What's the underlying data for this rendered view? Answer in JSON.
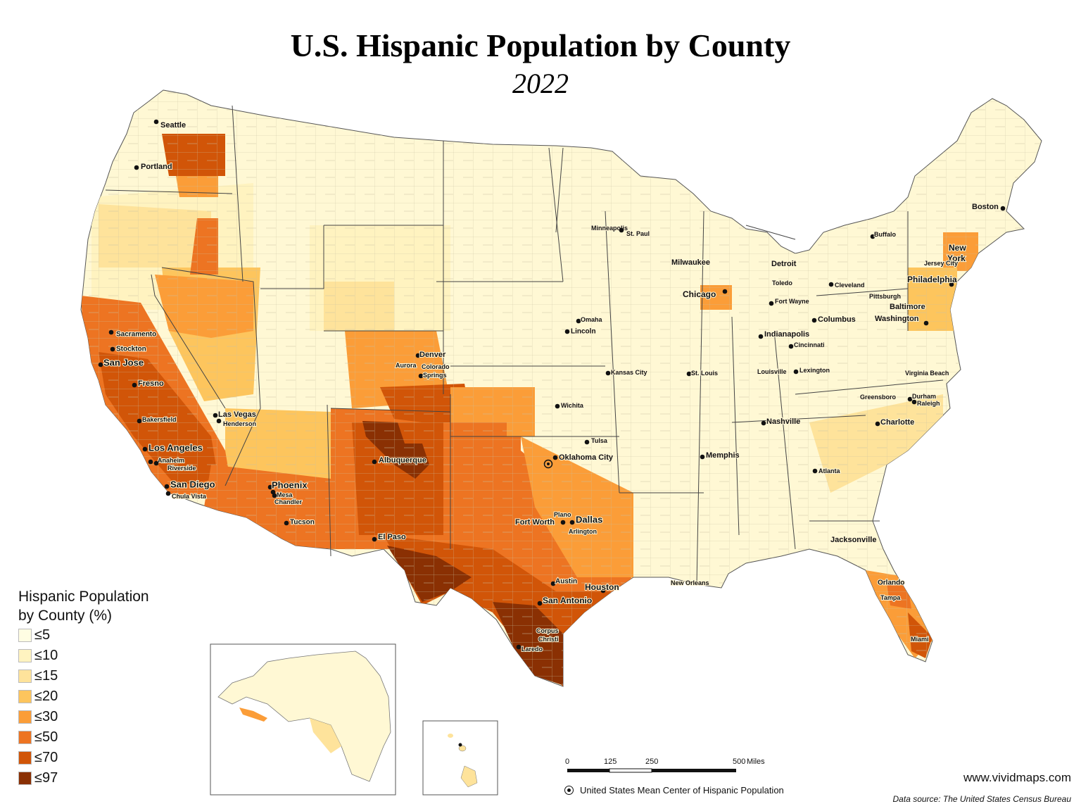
{
  "title": "U.S. Hispanic Population by County",
  "subtitle": "2022",
  "legend": {
    "title_line1": "Hispanic Population",
    "title_line2": "by County (%)",
    "items": [
      {
        "label": "≤5",
        "color": "#fffde3"
      },
      {
        "label": "≤10",
        "color": "#fff3c0"
      },
      {
        "label": "≤15",
        "color": "#fee39b"
      },
      {
        "label": "≤20",
        "color": "#fdc55d"
      },
      {
        "label": "≤30",
        "color": "#fb9d38"
      },
      {
        "label": "≤50",
        "color": "#ed7422"
      },
      {
        "label": "≤70",
        "color": "#d15508"
      },
      {
        "label": "≤97",
        "color": "#8a3003"
      }
    ]
  },
  "cities": [
    {
      "name": "Seattle"
    },
    {
      "name": "Portland"
    },
    {
      "name": "Sacramento"
    },
    {
      "name": "Stockton"
    },
    {
      "name": "San Jose"
    },
    {
      "name": "Fresno"
    },
    {
      "name": "Bakersfield"
    },
    {
      "name": "Los Angeles"
    },
    {
      "name": "Anaheim"
    },
    {
      "name": "Riverside"
    },
    {
      "name": "San Diego"
    },
    {
      "name": "Chula Vista"
    },
    {
      "name": "Las Vegas"
    },
    {
      "name": "Henderson"
    },
    {
      "name": "Phoenix"
    },
    {
      "name": "Mesa"
    },
    {
      "name": "Chandler"
    },
    {
      "name": "Tucson"
    },
    {
      "name": "Denver"
    },
    {
      "name": "Aurora"
    },
    {
      "name": "Colorado"
    },
    {
      "name": "Springs"
    },
    {
      "name": "Albuquerque"
    },
    {
      "name": "El Paso"
    },
    {
      "name": "Minneapolis"
    },
    {
      "name": "St. Paul"
    },
    {
      "name": "Omaha"
    },
    {
      "name": "Lincoln"
    },
    {
      "name": "Kansas City"
    },
    {
      "name": "Wichita"
    },
    {
      "name": "Tulsa"
    },
    {
      "name": "Oklahoma City"
    },
    {
      "name": "Plano"
    },
    {
      "name": "Dallas"
    },
    {
      "name": "Fort Worth"
    },
    {
      "name": "Arlington"
    },
    {
      "name": "Austin"
    },
    {
      "name": "Houston"
    },
    {
      "name": "San Antonio"
    },
    {
      "name": "Corpus"
    },
    {
      "name": "Christi"
    },
    {
      "name": "Laredo"
    },
    {
      "name": "Milwaukee"
    },
    {
      "name": "Chicago"
    },
    {
      "name": "Detroit"
    },
    {
      "name": "Toledo"
    },
    {
      "name": "Cleveland"
    },
    {
      "name": "Fort Wayne"
    },
    {
      "name": "Columbus"
    },
    {
      "name": "Indianapolis"
    },
    {
      "name": "Cincinnati"
    },
    {
      "name": "St. Louis"
    },
    {
      "name": "Louisville"
    },
    {
      "name": "Lexington"
    },
    {
      "name": "Nashville"
    },
    {
      "name": "Memphis"
    },
    {
      "name": "Atlanta"
    },
    {
      "name": "New Orleans"
    },
    {
      "name": "Jacksonville"
    },
    {
      "name": "Orlando"
    },
    {
      "name": "Tampa"
    },
    {
      "name": "Miami"
    },
    {
      "name": "Charlotte"
    },
    {
      "name": "Greensboro"
    },
    {
      "name": "Durham"
    },
    {
      "name": "Raleigh"
    },
    {
      "name": "Virginia Beach"
    },
    {
      "name": "Washington"
    },
    {
      "name": "Baltimore"
    },
    {
      "name": "Pittsburgh"
    },
    {
      "name": "Philadelphia"
    },
    {
      "name": "New"
    },
    {
      "name": "York"
    },
    {
      "name": "Jersey City"
    },
    {
      "name": "Buffalo"
    },
    {
      "name": "Boston"
    }
  ],
  "scale_bar": {
    "ticks": [
      "0",
      "125",
      "250",
      "500"
    ],
    "unit": "Miles"
  },
  "mean_center_label": "United States Mean Center of Hispanic Population",
  "website": "www.vividmaps.com",
  "data_source": "Data source: The United States Census Bureau"
}
